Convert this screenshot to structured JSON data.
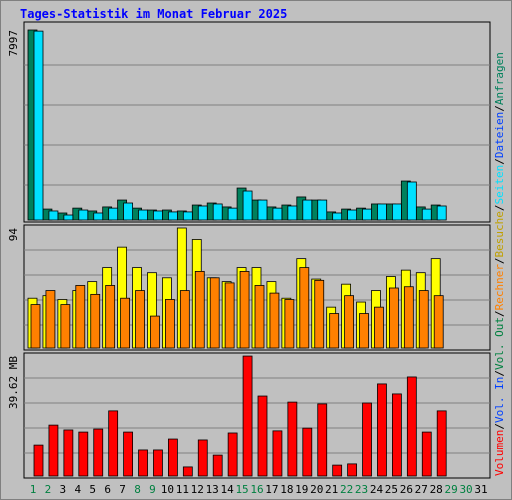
{
  "chart_data": [
    {
      "type": "bar",
      "title": "Tages-Statistik im Monat Februar 2025",
      "ylim": [
        0,
        7997
      ],
      "yticks": [
        7997
      ],
      "series": [
        {
          "name": "Anfragen",
          "color": "#00805c",
          "values": [
            7997,
            460,
            295,
            500,
            380,
            550,
            840,
            500,
            420,
            420,
            380,
            630,
            715,
            550,
            1345,
            840,
            550,
            630,
            970,
            840,
            340,
            460,
            500,
            675,
            675,
            1640,
            550,
            630,
            null,
            null,
            null
          ]
        },
        {
          "name": "Dateien",
          "color": "#0040ff",
          "values": [
            null,
            null,
            null,
            null,
            null,
            null,
            null,
            null,
            null,
            null,
            null,
            null,
            null,
            null,
            null,
            null,
            null,
            null,
            null,
            null,
            null,
            null,
            null,
            null,
            null,
            null,
            null,
            null,
            null,
            null,
            null
          ]
        },
        {
          "name": "Seiten",
          "color": "#00e0ff",
          "values": [
            7950,
            380,
            210,
            420,
            295,
            500,
            715,
            420,
            380,
            340,
            340,
            590,
            675,
            500,
            1220,
            840,
            500,
            590,
            840,
            840,
            295,
            420,
            460,
            675,
            675,
            1600,
            460,
            590,
            null,
            null,
            null
          ]
        }
      ]
    },
    {
      "type": "bar",
      "ylim": [
        0,
        94
      ],
      "yticks": [
        94
      ],
      "series": [
        {
          "name": "Besuche",
          "color": "#ffff00",
          "text_color": "#c0a000",
          "values": [
            39,
            41,
            38,
            45,
            52,
            63,
            79,
            63,
            59,
            55,
            94,
            85,
            55,
            52,
            63,
            63,
            52,
            39,
            70,
            54,
            32,
            50,
            36,
            45,
            56,
            61,
            59,
            70,
            null,
            null,
            null
          ]
        },
        {
          "name": "Rechner",
          "color": "#ff8000",
          "values": [
            34,
            45,
            34,
            49,
            42,
            49,
            39,
            45,
            25,
            38,
            45,
            60,
            55,
            51,
            60,
            49,
            43,
            38,
            63,
            53,
            27,
            41,
            27,
            32,
            47,
            48,
            45,
            41,
            null,
            null,
            null
          ]
        }
      ]
    },
    {
      "type": "bar",
      "ylim": [
        0,
        39.62
      ],
      "yticks": [
        {
          "value": 39.62,
          "label": "39.62 MB"
        }
      ],
      "categories": [
        "1",
        "2",
        "3",
        "4",
        "5",
        "6",
        "7",
        "8",
        "9",
        "10",
        "11",
        "12",
        "13",
        "14",
        "15",
        "16",
        "17",
        "18",
        "19",
        "20",
        "21",
        "22",
        "23",
        "24",
        "25",
        "26",
        "27",
        "28",
        "29",
        "30",
        "31"
      ],
      "weekend": [
        0,
        1,
        7,
        8,
        14,
        15,
        21,
        22,
        28,
        29
      ],
      "weekday_color": "#000000",
      "weekend_color": "#008040",
      "series": [
        {
          "name": "Vol. Out",
          "color": "#008040",
          "values": [
            null,
            null,
            null,
            null,
            null,
            null,
            null,
            null,
            null,
            null,
            null,
            null,
            null,
            null,
            null,
            null,
            null,
            null,
            null,
            null,
            null,
            null,
            null,
            null,
            null,
            null,
            null,
            null,
            null,
            null,
            null
          ]
        },
        {
          "name": "Vol. In",
          "color": "#0040ff",
          "values": [
            null,
            null,
            null,
            null,
            null,
            null,
            null,
            null,
            null,
            null,
            null,
            null,
            null,
            null,
            null,
            null,
            null,
            null,
            null,
            null,
            null,
            null,
            null,
            null,
            null,
            null,
            null,
            null,
            null,
            null,
            null
          ]
        },
        {
          "name": "Volumen",
          "color": "#ff0000",
          "values": [
            10.2,
            16.8,
            15.2,
            14.5,
            15.5,
            21.5,
            14.5,
            8.6,
            8.6,
            12.2,
            3.0,
            11.9,
            6.9,
            14.2,
            39.6,
            26.4,
            14.9,
            24.4,
            15.8,
            23.8,
            3.6,
            4.0,
            24.1,
            30.4,
            27.1,
            32.7,
            14.5,
            21.5,
            null,
            null,
            null
          ]
        }
      ]
    }
  ],
  "legend_separator": "/"
}
